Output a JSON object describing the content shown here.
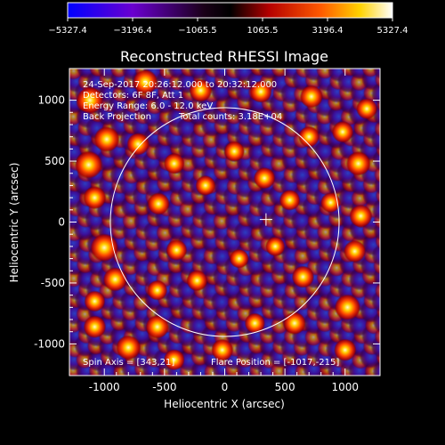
{
  "chart_data": {
    "type": "heatmap",
    "title": "Reconstructed RHESSI Image",
    "xlabel": "Heliocentric X (arcsec)",
    "ylabel": "Heliocentric Y (arcsec)",
    "xlim": [
      -1290,
      1290
    ],
    "ylim": [
      -1260,
      1260
    ],
    "xticks": [
      -1000,
      -500,
      0,
      500,
      1000
    ],
    "yticks": [
      -1000,
      -500,
      0,
      500,
      1000
    ],
    "xtick_labels": [
      "-1000",
      "-500",
      "0",
      "500",
      "1000"
    ],
    "ytick_labels": [
      "-1000",
      "-500",
      "0",
      "500",
      "1000"
    ],
    "colorbar": {
      "range": [
        -5327.4,
        5327.4
      ],
      "tick_values": [
        -5327.4,
        -3196.4,
        -1065.5,
        1065.5,
        3196.4,
        5327.4
      ],
      "tick_labels": [
        "−5327.4",
        "−3196.4",
        "−1065.5",
        "1065.5",
        "3196.4",
        "5327.4"
      ],
      "colors": [
        "#0000ff",
        "#6a00d0",
        "#1a0018",
        "#000000",
        "#b40000",
        "#ff5a00",
        "#ffd200",
        "#ffffff"
      ]
    },
    "annotations": [
      "24-Sep-2017 20:26:12.000 to 20:32:12.000",
      "Detectors: 6F 8F, Att 1",
      "Energy Range: 6.0 - 12.0 keV",
      "Back Projection",
      "Total counts: 3.18E+04"
    ],
    "footer_left": "Spin Axis = [343,21]",
    "footer_right": "Flare Position = [-1017,-215]",
    "solar_limb": {
      "center": [
        0,
        0
      ],
      "radius": 950
    },
    "cross_marker": [
      343,
      21
    ],
    "blobs": [
      {
        "x": -1120,
        "y": 1000,
        "v": 5000
      },
      {
        "x": -980,
        "y": 680,
        "v": 4500
      },
      {
        "x": -1130,
        "y": 470,
        "v": 5200
      },
      {
        "x": -1080,
        "y": 200,
        "v": 3600
      },
      {
        "x": -1000,
        "y": -210,
        "v": 5327
      },
      {
        "x": -910,
        "y": -470,
        "v": 4000
      },
      {
        "x": -1080,
        "y": -650,
        "v": 3000
      },
      {
        "x": -1080,
        "y": -860,
        "v": 3500
      },
      {
        "x": -800,
        "y": -1030,
        "v": 4200
      },
      {
        "x": -560,
        "y": -860,
        "v": 3800
      },
      {
        "x": -420,
        "y": -1130,
        "v": 3000
      },
      {
        "x": -20,
        "y": -1050,
        "v": 3300
      },
      {
        "x": 250,
        "y": -830,
        "v": 2800
      },
      {
        "x": 580,
        "y": -830,
        "v": 3500
      },
      {
        "x": 1000,
        "y": -1050,
        "v": 3400
      },
      {
        "x": 1020,
        "y": -700,
        "v": 4600
      },
      {
        "x": 1080,
        "y": -240,
        "v": 3400
      },
      {
        "x": 1130,
        "y": 50,
        "v": 3600
      },
      {
        "x": 1110,
        "y": 480,
        "v": 4100
      },
      {
        "x": 980,
        "y": 740,
        "v": 3200
      },
      {
        "x": 720,
        "y": 1030,
        "v": 3600
      },
      {
        "x": 1180,
        "y": 930,
        "v": 3000
      },
      {
        "x": 300,
        "y": 1070,
        "v": 3400
      },
      {
        "x": -200,
        "y": 1080,
        "v": 3600
      },
      {
        "x": -660,
        "y": 1150,
        "v": 4300
      },
      {
        "x": -720,
        "y": 640,
        "v": 3500
      },
      {
        "x": -420,
        "y": 480,
        "v": 2900
      },
      {
        "x": -550,
        "y": 150,
        "v": 3400
      },
      {
        "x": -400,
        "y": -230,
        "v": 3000
      },
      {
        "x": -560,
        "y": -560,
        "v": 2700
      },
      {
        "x": -230,
        "y": -480,
        "v": 3000
      },
      {
        "x": -160,
        "y": 300,
        "v": 2700
      },
      {
        "x": 80,
        "y": 580,
        "v": 2800
      },
      {
        "x": 330,
        "y": 360,
        "v": 3200
      },
      {
        "x": 540,
        "y": 180,
        "v": 2900
      },
      {
        "x": 420,
        "y": -200,
        "v": 2500
      },
      {
        "x": 650,
        "y": -450,
        "v": 3400
      },
      {
        "x": 120,
        "y": -300,
        "v": 2400
      },
      {
        "x": 700,
        "y": 700,
        "v": 3000
      },
      {
        "x": 880,
        "y": 160,
        "v": 2700
      }
    ]
  }
}
